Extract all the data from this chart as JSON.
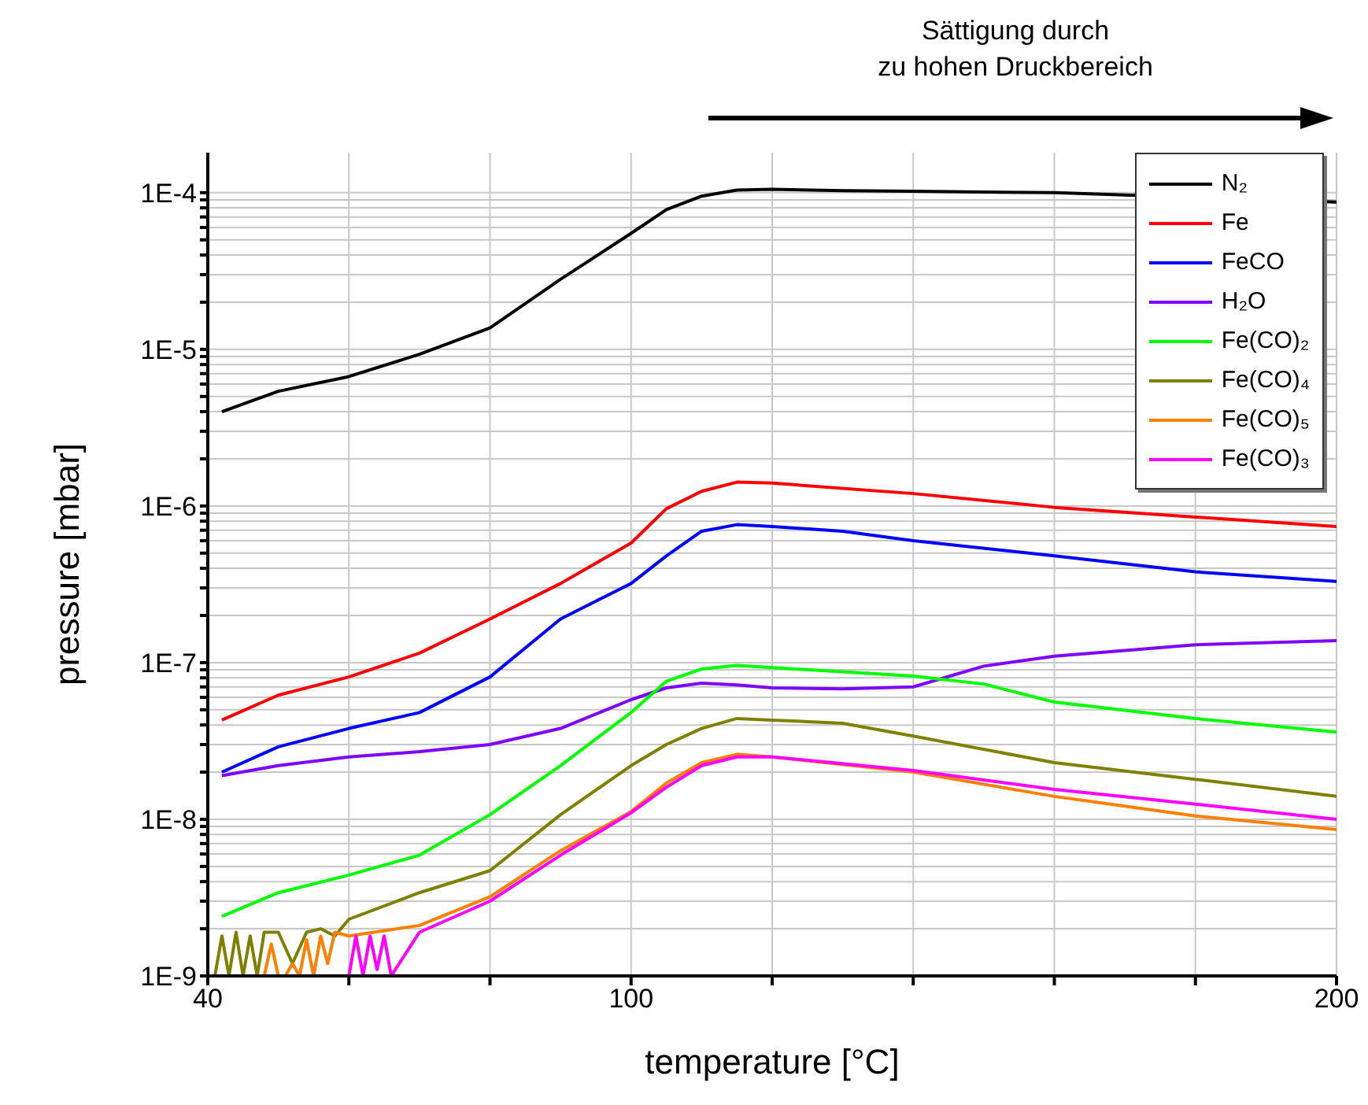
{
  "chart_data": {
    "type": "line",
    "xlabel": "temperature [°C]",
    "ylabel": "pressure [mbar]",
    "log": "y",
    "grid": true,
    "legend": "top right",
    "line_style": "solid",
    "marker": "none",
    "annotations": [
      "Sättigung durch\nzu hohen Druckbereich"
    ],
    "xlim": [
      40,
      200
    ],
    "xticks": [
      40,
      {
        "value": 60,
        "label": null
      },
      {
        "value": 80,
        "label": null
      },
      100,
      {
        "value": 120,
        "label": null
      },
      {
        "value": 140,
        "label": null
      },
      {
        "value": 160,
        "label": null
      },
      {
        "value": 180,
        "label": null
      },
      200
    ],
    "ylim": [
      1e-09,
      0.00018
    ],
    "yticks": [
      {
        "value": 1e-09,
        "label": "1E-9"
      },
      {
        "value": 2e-09,
        "label": null
      },
      {
        "value": 3e-09,
        "label": null
      },
      {
        "value": 4e-09,
        "label": null
      },
      {
        "value": 5e-09,
        "label": null
      },
      {
        "value": 6e-09,
        "label": null
      },
      {
        "value": 7e-09,
        "label": null
      },
      {
        "value": 8e-09,
        "label": null
      },
      {
        "value": 9e-09,
        "label": null
      },
      {
        "value": 1e-08,
        "label": "1E-8"
      },
      {
        "value": 2e-08,
        "label": null
      },
      {
        "value": 3e-08,
        "label": null
      },
      {
        "value": 4e-08,
        "label": null
      },
      {
        "value": 5e-08,
        "label": null
      },
      {
        "value": 6e-08,
        "label": null
      },
      {
        "value": 7e-08,
        "label": null
      },
      {
        "value": 8e-08,
        "label": null
      },
      {
        "value": 9e-08,
        "label": null
      },
      {
        "value": 1e-07,
        "label": "1E-7"
      },
      {
        "value": 2e-07,
        "label": null
      },
      {
        "value": 3e-07,
        "label": null
      },
      {
        "value": 4e-07,
        "label": null
      },
      {
        "value": 5e-07,
        "label": null
      },
      {
        "value": 6e-07,
        "label": null
      },
      {
        "value": 7e-07,
        "label": null
      },
      {
        "value": 8e-07,
        "label": null
      },
      {
        "value": 9e-07,
        "label": null
      },
      {
        "value": 1e-06,
        "label": "1E-6"
      },
      {
        "value": 2e-06,
        "label": null
      },
      {
        "value": 3e-06,
        "label": null
      },
      {
        "value": 4e-06,
        "label": null
      },
      {
        "value": 5e-06,
        "label": null
      },
      {
        "value": 6e-06,
        "label": null
      },
      {
        "value": 7e-06,
        "label": null
      },
      {
        "value": 8e-06,
        "label": null
      },
      {
        "value": 9e-06,
        "label": null
      },
      {
        "value": 1e-05,
        "label": "1E-5"
      },
      {
        "value": 2e-05,
        "label": null
      },
      {
        "value": 3e-05,
        "label": null
      },
      {
        "value": 4e-05,
        "label": null
      },
      {
        "value": 5e-05,
        "label": null
      },
      {
        "value": 6e-05,
        "label": null
      },
      {
        "value": 7e-05,
        "label": null
      },
      {
        "value": 8e-05,
        "label": null
      },
      {
        "value": 9e-05,
        "label": null
      },
      {
        "value": 0.0001,
        "label": "1E-4"
      }
    ],
    "series": [
      {
        "name": "N₂",
        "color": "#000000",
        "x": [
          42,
          50,
          60,
          70,
          80,
          90,
          100,
          105,
          110,
          115,
          120,
          130,
          140,
          160,
          180,
          200
        ],
        "values": [
          4e-06,
          5.4e-06,
          6.7e-06,
          9.3e-06,
          1.37e-05,
          2.8e-05,
          5.5e-05,
          7.8e-05,
          9.5e-05,
          0.000104,
          0.000105,
          0.000103,
          0.000102,
          0.0001,
          null,
          8.7e-05
        ]
      },
      {
        "name": "Fe",
        "color": "#ff0000",
        "x": [
          42,
          50,
          60,
          70,
          80,
          90,
          100,
          105,
          110,
          115,
          120,
          140,
          160,
          180,
          200
        ],
        "values": [
          4.3e-08,
          6.2e-08,
          8.1e-08,
          1.15e-07,
          1.9e-07,
          3.2e-07,
          5.8e-07,
          9.6e-07,
          1.24e-06,
          1.42e-06,
          1.4e-06,
          1.2e-06,
          9.8e-07,
          8.5e-07,
          7.4e-07
        ]
      },
      {
        "name": "FeCO",
        "color": "#0000ff",
        "x": [
          42,
          50,
          60,
          70,
          80,
          90,
          100,
          105,
          110,
          115,
          120,
          130,
          140,
          160,
          180,
          200
        ],
        "values": [
          2e-08,
          2.9e-08,
          3.8e-08,
          4.8e-08,
          8.1e-08,
          1.9e-07,
          3.2e-07,
          4.8e-07,
          6.9e-07,
          7.6e-07,
          7.4e-07,
          6.9e-07,
          6e-07,
          4.8e-07,
          3.8e-07,
          3.3e-07
        ]
      },
      {
        "name": "H₂O",
        "color": "#8000ff",
        "x": [
          42,
          50,
          60,
          70,
          80,
          90,
          100,
          105,
          110,
          115,
          120,
          130,
          140,
          150,
          160,
          180,
          200
        ],
        "values": [
          1.9e-08,
          2.2e-08,
          2.5e-08,
          2.7e-08,
          3e-08,
          3.8e-08,
          5.8e-08,
          6.9e-08,
          7.4e-08,
          7.2e-08,
          6.9e-08,
          6.8e-08,
          7e-08,
          9.5e-08,
          1.1e-07,
          1.3e-07,
          1.38e-07
        ]
      },
      {
        "name": "Fe(CO)₂",
        "color": "#00ff00",
        "x": [
          42,
          50,
          60,
          70,
          80,
          90,
          100,
          105,
          110,
          115,
          120,
          140,
          150,
          160,
          180,
          200
        ],
        "values": [
          2.4e-09,
          3.4e-09,
          4.4e-09,
          5.9e-09,
          1.07e-08,
          2.2e-08,
          4.8e-08,
          7.6e-08,
          9.1e-08,
          9.6e-08,
          9.3e-08,
          8.2e-08,
          7.3e-08,
          5.6e-08,
          4.4e-08,
          3.6e-08
        ]
      },
      {
        "name": "Fe(CO)₄",
        "color": "#808000",
        "x": [
          41,
          42,
          43,
          44,
          45,
          46,
          47,
          48,
          50,
          52,
          54,
          56,
          58,
          60,
          70,
          80,
          90,
          100,
          105,
          110,
          115,
          120,
          130,
          140,
          160,
          180,
          200
        ],
        "values": [
          1e-09,
          1.8e-09,
          1e-09,
          1.9e-09,
          1e-09,
          1.8e-09,
          1e-09,
          1.9e-09,
          1.9e-09,
          1.2e-09,
          1.9e-09,
          2e-09,
          1.8e-09,
          2.3e-09,
          3.4e-09,
          4.7e-09,
          1.07e-08,
          2.2e-08,
          3e-08,
          3.8e-08,
          4.4e-08,
          4.3e-08,
          4.1e-08,
          3.4e-08,
          2.3e-08,
          1.8e-08,
          1.4e-08
        ]
      },
      {
        "name": "Fe(CO)₅",
        "color": "#ff8000",
        "x": [
          48,
          49,
          50,
          51,
          52,
          53,
          54,
          55,
          56,
          57,
          58,
          60,
          70,
          80,
          90,
          100,
          105,
          110,
          115,
          120,
          140,
          160,
          180,
          200
        ],
        "values": [
          1e-09,
          1.6e-09,
          1e-09,
          1e-09,
          1.2e-09,
          1e-09,
          1.7e-09,
          1e-09,
          1.8e-09,
          1.2e-09,
          1.9e-09,
          1.8e-09,
          2.1e-09,
          3.2e-09,
          6.3e-09,
          1.12e-08,
          1.7e-08,
          2.3e-08,
          2.6e-08,
          2.5e-08,
          2e-08,
          1.4e-08,
          1.05e-08,
          8.6e-09
        ]
      },
      {
        "name": "Fe(CO)₃",
        "color": "#ff00ff",
        "x": [
          59,
          60,
          61,
          62,
          63,
          64,
          65,
          66,
          70,
          80,
          90,
          100,
          105,
          110,
          115,
          120,
          140,
          160,
          180,
          200
        ],
        "values": [
          1e-09,
          1e-09,
          1.8e-09,
          1e-09,
          1.8e-09,
          1.1e-09,
          1.8e-09,
          1e-09,
          1.9e-09,
          3e-09,
          5.9e-09,
          1.1e-08,
          1.6e-08,
          2.2e-08,
          2.5e-08,
          2.5e-08,
          2.05e-08,
          1.55e-08,
          1.25e-08,
          1e-08
        ]
      }
    ]
  }
}
